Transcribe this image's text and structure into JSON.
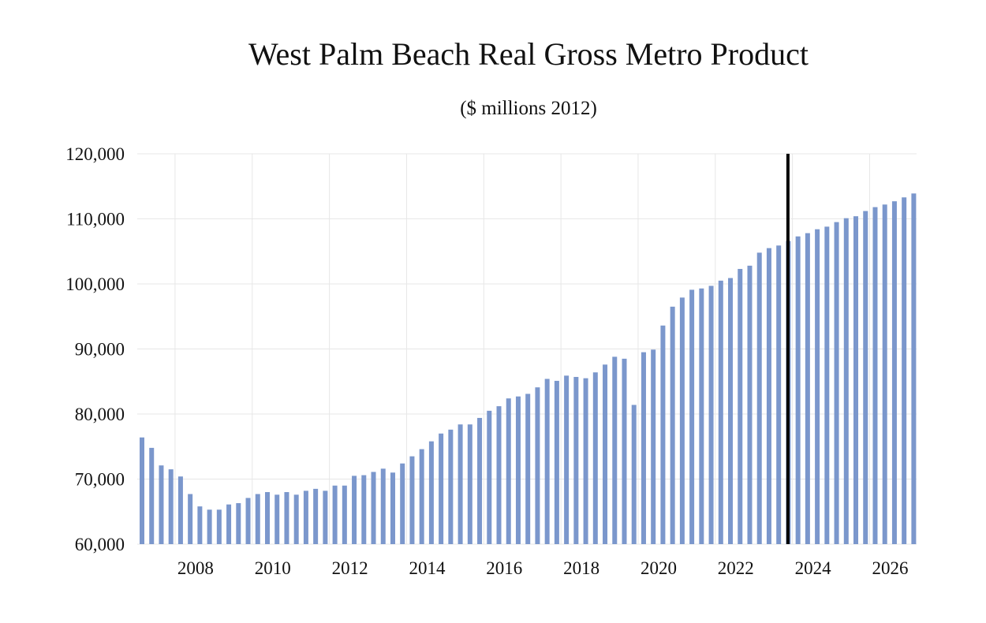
{
  "chart_data": {
    "type": "bar",
    "title": "West Palm Beach Real Gross Metro Product",
    "subtitle": "($ millions 2012)",
    "xlabel": "",
    "ylabel": "",
    "ylim": [
      60000,
      120000
    ],
    "y_ticks": [
      60000,
      70000,
      80000,
      90000,
      100000,
      110000,
      120000
    ],
    "y_tick_labels": [
      "60,000",
      "70,000",
      "80,000",
      "90,000",
      "100,000",
      "110,000",
      "120,000"
    ],
    "x_tick_labels": [
      "2008",
      "2010",
      "2012",
      "2014",
      "2016",
      "2018",
      "2020",
      "2022",
      "2024",
      "2026"
    ],
    "x_tick_years": [
      2008,
      2010,
      2012,
      2014,
      2016,
      2018,
      2020,
      2022,
      2024,
      2026
    ],
    "start": {
      "year": 2007,
      "quarter": 1
    },
    "frequency": "quarterly",
    "bar_color": "#7b97cc",
    "marker_line": {
      "year": 2023,
      "quarter": 4,
      "color": "#000000"
    },
    "grid": true,
    "values": [
      76400,
      74800,
      72100,
      71500,
      70400,
      67700,
      65800,
      65300,
      65300,
      66100,
      66300,
      67100,
      67700,
      68000,
      67600,
      68000,
      67600,
      68200,
      68500,
      68200,
      69000,
      69000,
      70500,
      70600,
      71100,
      71600,
      71000,
      72400,
      73500,
      74600,
      75800,
      77000,
      77600,
      78400,
      78400,
      79400,
      80500,
      81200,
      82400,
      82700,
      83100,
      84100,
      85400,
      85100,
      85900,
      85700,
      85500,
      86400,
      87600,
      88800,
      88500,
      81400,
      89500,
      89900,
      93600,
      96500,
      97900,
      99100,
      99300,
      99700,
      100500,
      100900,
      102300,
      102800,
      104800,
      105500,
      105900,
      106600,
      107300,
      107800,
      108400,
      108800,
      109500,
      110100,
      110400,
      111200,
      111800,
      112200,
      112700,
      113300,
      113900
    ]
  }
}
